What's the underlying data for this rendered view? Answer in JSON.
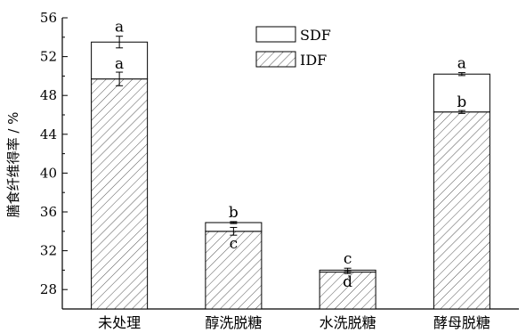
{
  "chart_data": {
    "type": "bar",
    "stacked": true,
    "categories": [
      "未处理",
      "醇洗脱糖",
      "水洗脱糖",
      "酵母脱糖"
    ],
    "ylabel": "膳食纤维得率 / %",
    "ylim": [
      26,
      56
    ],
    "yticks": [
      28,
      32,
      36,
      40,
      44,
      48,
      52,
      56
    ],
    "legend_position": "top-center",
    "series": [
      {
        "name": "IDF",
        "fill": "hatched",
        "values": [
          49.7,
          34.0,
          29.8,
          46.3
        ],
        "errors": [
          0.7,
          0.4,
          0.15,
          0.15
        ],
        "letters": [
          "a",
          "c",
          "d",
          "b"
        ]
      },
      {
        "name": "SDF",
        "fill": "white",
        "totals": [
          53.5,
          34.9,
          30.0,
          50.2
        ],
        "errors": [
          0.6,
          0.1,
          0.2,
          0.15
        ],
        "letters": [
          "a",
          "b",
          "c",
          "a"
        ]
      }
    ],
    "colors": {
      "stroke": "#000000",
      "hatch": "#555555",
      "background": "#ffffff"
    }
  }
}
